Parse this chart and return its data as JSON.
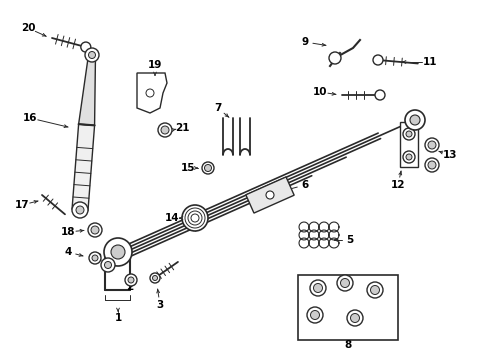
{
  "background_color": "#ffffff",
  "line_color": "#2a2a2a",
  "text_color": "#000000",
  "figsize": [
    4.9,
    3.6
  ],
  "dpi": 100
}
